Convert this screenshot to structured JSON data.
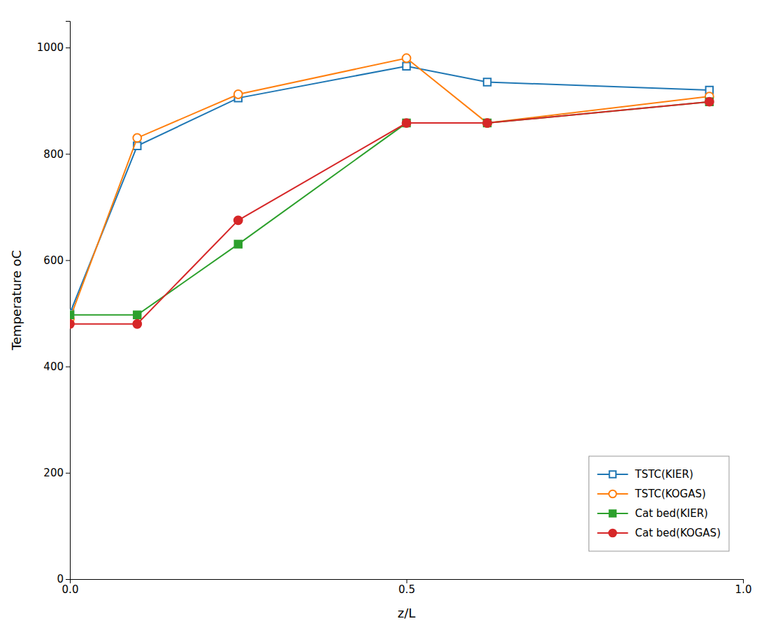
{
  "chart_data": {
    "type": "line",
    "xlabel": "z/L",
    "ylabel": "Temperature oC",
    "x": [
      0.0,
      0.1,
      0.25,
      0.5,
      0.62,
      0.95
    ],
    "series": [
      {
        "name": "TSTC(KIER)",
        "marker": "square-open",
        "values": [
          500,
          815,
          905,
          965,
          935,
          920
        ]
      },
      {
        "name": "TSTC(KOGAS)",
        "marker": "circle-open",
        "values": [
          490,
          830,
          912,
          980,
          858,
          908
        ]
      },
      {
        "name": "Cat bed(KIER)",
        "marker": "square",
        "values": [
          497,
          497,
          630,
          858,
          858,
          898
        ]
      },
      {
        "name": "Cat bed(KOGAS)",
        "marker": "circle",
        "values": [
          480,
          480,
          675,
          858,
          858,
          898
        ]
      }
    ],
    "xlim": [
      0.0,
      1.0
    ],
    "ylim": [
      0,
      1050
    ],
    "xticks": [
      {
        "value": 0.0,
        "label": "0.0"
      },
      0.5,
      {
        "value": 1.0,
        "label": "1.0"
      }
    ],
    "yticks": [
      0,
      200,
      400,
      600,
      800,
      1000
    ],
    "legend": "lower right",
    "grid": false
  }
}
